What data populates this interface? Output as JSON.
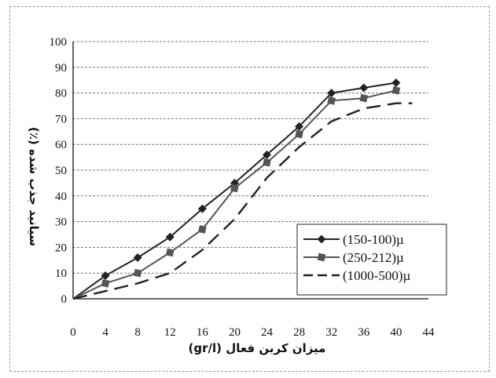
{
  "chart_data": {
    "type": "line",
    "title": "",
    "xlabel": "میزان کربن فعال (gr/l)",
    "ylabel": "سیانید جذب شده (٪)",
    "x_ticks": [
      "0",
      "4",
      "8",
      "12",
      "16",
      "20",
      "24",
      "28",
      "32",
      "36",
      "40",
      "44"
    ],
    "y_ticks": [
      "0",
      "10",
      "20",
      "30",
      "40",
      "50",
      "60",
      "70",
      "80",
      "90",
      "100"
    ],
    "xlim": [
      0,
      44
    ],
    "ylim": [
      0,
      100
    ],
    "grid": "horizontal",
    "legend_position": "bottom-right",
    "series": [
      {
        "name": "(150-100)µ",
        "marker": "diamond",
        "line": "solid",
        "color": "#222222",
        "x": [
          0,
          4,
          8,
          12,
          16,
          20,
          24,
          28,
          32,
          36,
          40
        ],
        "y": [
          0,
          9,
          16,
          24,
          35,
          45,
          56,
          67,
          80,
          82,
          84
        ]
      },
      {
        "name": "(250-212)µ",
        "marker": "square",
        "line": "solid",
        "color": "#555555",
        "x": [
          0,
          4,
          8,
          12,
          16,
          20,
          24,
          28,
          32,
          36,
          40
        ],
        "y": [
          0,
          6,
          10,
          18,
          27,
          43,
          53,
          64,
          77,
          78,
          81
        ]
      },
      {
        "name": "(1000-500)µ",
        "marker": "none",
        "line": "dashed",
        "color": "#222222",
        "x": [
          0,
          4,
          8,
          12,
          16,
          20,
          24,
          28,
          32,
          36,
          40,
          42
        ],
        "y": [
          0,
          3,
          6,
          10,
          19,
          31,
          47,
          59,
          69,
          74,
          76,
          76
        ]
      }
    ]
  }
}
